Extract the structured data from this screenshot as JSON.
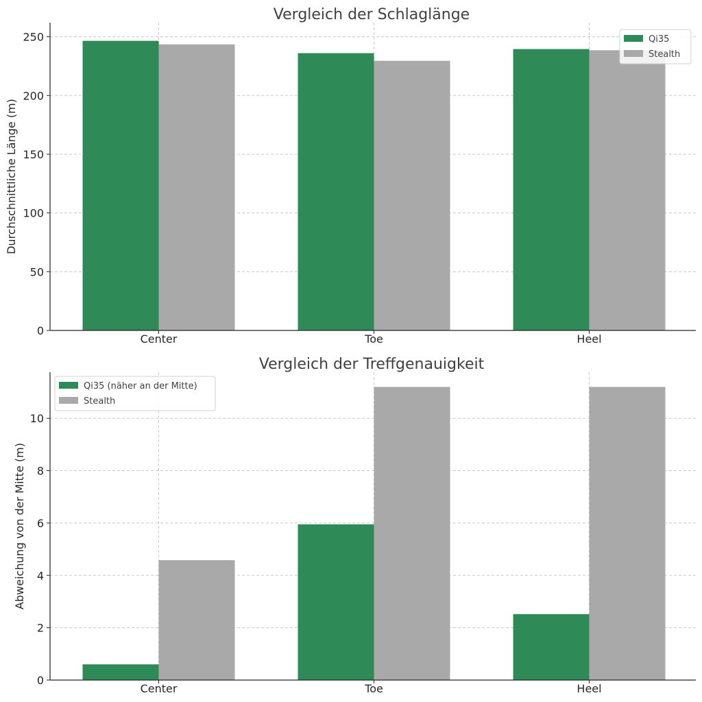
{
  "colors": {
    "qi35": "#2e8b57",
    "stealth": "#a9a9a9"
  },
  "chart_data": [
    {
      "type": "bar",
      "title": "Vergleich der Schlaglänge",
      "xlabel": "",
      "ylabel": "Durchschnittliche Länge (m)",
      "categories": [
        "Center",
        "Toe",
        "Heel"
      ],
      "ylim": [
        0,
        262
      ],
      "yticks": [
        0,
        50,
        100,
        150,
        200,
        250
      ],
      "grid": true,
      "legend_position": "top-right",
      "series": [
        {
          "name": "Qi35",
          "color": "#2e8b57",
          "values": [
            246.5,
            236,
            239.5
          ]
        },
        {
          "name": "Stealth",
          "color": "#a9a9a9",
          "values": [
            243.5,
            229.5,
            238.5
          ]
        }
      ]
    },
    {
      "type": "bar",
      "title": "Vergleich der Treffgenauigkeit",
      "xlabel": "",
      "ylabel": "Abweichung von der Mitte (m)",
      "categories": [
        "Center",
        "Toe",
        "Heel"
      ],
      "ylim": [
        0,
        11.76
      ],
      "yticks": [
        0,
        2,
        4,
        6,
        8,
        10
      ],
      "grid": true,
      "legend_position": "top-left",
      "series": [
        {
          "name": "Qi35 (näher an der Mitte)",
          "color": "#2e8b57",
          "values": [
            0.6,
            5.95,
            2.52
          ]
        },
        {
          "name": "Stealth",
          "color": "#a9a9a9",
          "values": [
            4.58,
            11.2,
            11.2
          ]
        }
      ]
    }
  ]
}
